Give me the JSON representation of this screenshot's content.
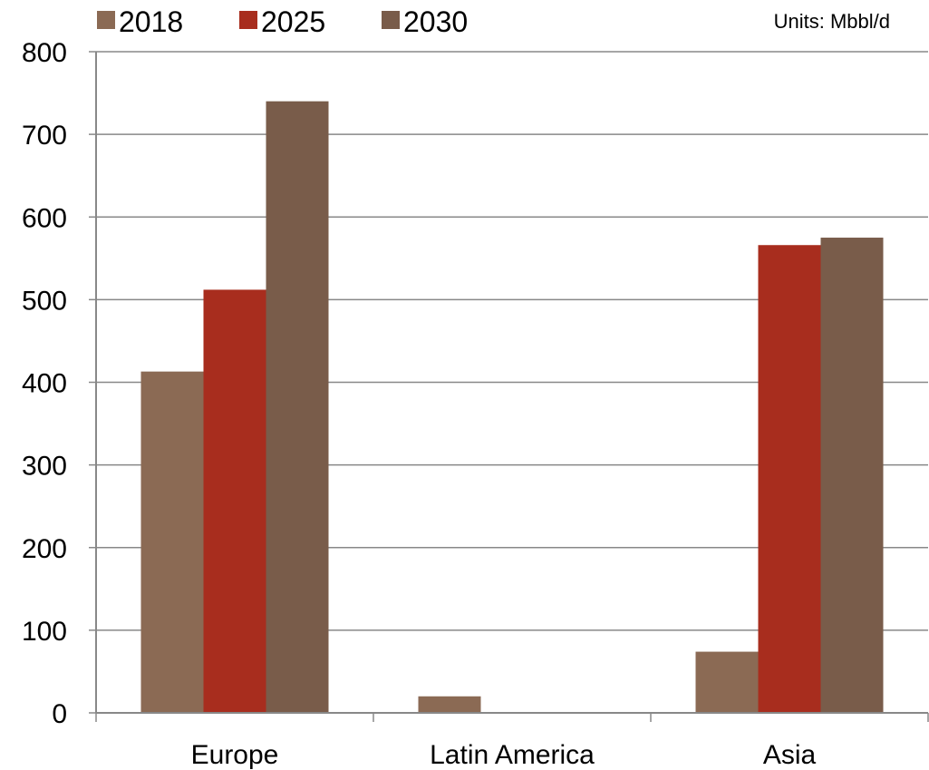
{
  "chart_data": {
    "type": "bar",
    "categories": [
      "Europe",
      "Latin America",
      "Asia"
    ],
    "series": [
      {
        "name": "2018",
        "color": "#8B6A54",
        "values": [
          413,
          20,
          74
        ]
      },
      {
        "name": "2025",
        "color": "#A82D1E",
        "values": [
          512,
          0,
          566
        ]
      },
      {
        "name": "2030",
        "color": "#795C4A",
        "values": [
          740,
          0,
          575
        ]
      }
    ],
    "y_ticks": [
      "0",
      "100",
      "200",
      "300",
      "400",
      "500",
      "600",
      "700",
      "800"
    ],
    "ylim": [
      0,
      800
    ],
    "units_note": "Units: Mbbl/d",
    "legend_position": "top-left",
    "grid": true,
    "gridline_color": "#888888"
  }
}
